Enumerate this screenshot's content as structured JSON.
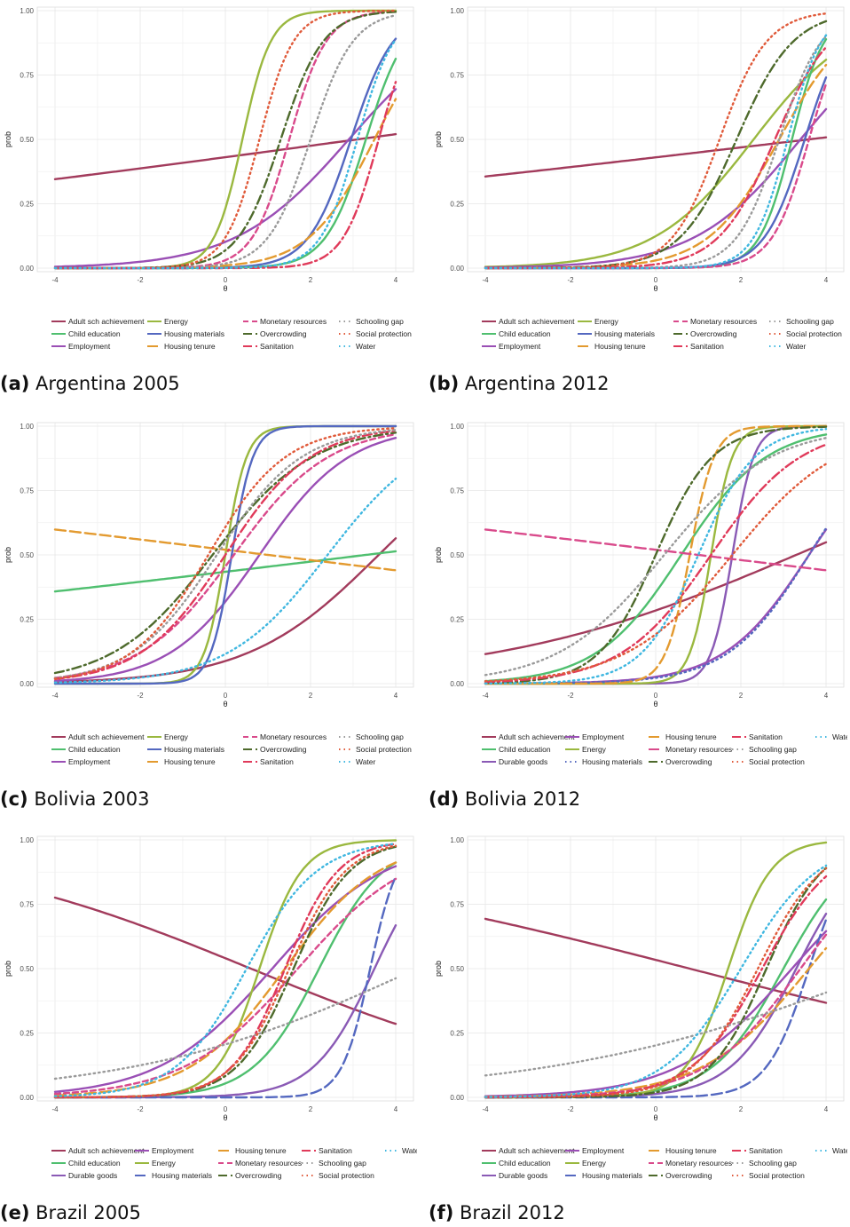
{
  "colors": {
    "Adult sch achievement": "#a23b5c",
    "Child education": "#4fbf6f",
    "Employment": "#9a4fb5",
    "Energy": "#9ab83f",
    "Housing materials": "#5468c0",
    "Housing tenure": "#e39a2f",
    "Monetary resources": "#d94a8b",
    "Overcrowding": "#4e6a2c",
    "Sanitation": "#e03a5a",
    "Schooling gap": "#9a9a9a",
    "Social protection": "#e05a3a",
    "Water": "#3fb7e0",
    "Durable goods": "#8a5ab5"
  },
  "axis": {
    "xlabel": "θ",
    "ylabel": "prob",
    "xticks": [
      "-4",
      "-2",
      "0",
      "2",
      "4"
    ],
    "yticks": [
      "0.00",
      "0.25",
      "0.50",
      "0.75",
      "1.00"
    ],
    "xlim": [
      -4,
      4
    ],
    "ylim": [
      0,
      1
    ]
  },
  "chart_data": [
    {
      "type": "line",
      "label": "(a)",
      "title": "Argentina 2005",
      "legend": [
        "Adult sch achievement",
        "Child education",
        "Employment",
        "Energy",
        "Housing materials",
        "Housing tenure",
        "Monetary resources",
        "Overcrowding",
        "Sanitation",
        "Schooling gap",
        "Social protection",
        "Water"
      ],
      "series": [
        {
          "name": "Adult sch achievement",
          "a": 0.09,
          "b": 3.1,
          "dash": "solid"
        },
        {
          "name": "Employment",
          "a": 0.75,
          "b": 2.9,
          "dash": "solid"
        },
        {
          "name": "Energy",
          "a": 3.0,
          "b": 0.4,
          "dash": "solid"
        },
        {
          "name": "Housing materials",
          "a": 2.0,
          "b": 2.95,
          "dash": "solid"
        },
        {
          "name": "Child education",
          "a": 2.1,
          "b": 3.3,
          "dash": "solid"
        },
        {
          "name": "Housing tenure",
          "a": 1.3,
          "b": 3.5,
          "dash": "longdash"
        },
        {
          "name": "Monetary resources",
          "a": 2.3,
          "b": 1.5,
          "dash": "dash"
        },
        {
          "name": "Overcrowding",
          "a": 2.0,
          "b": 1.3,
          "dash": "dashdot"
        },
        {
          "name": "Sanitation",
          "a": 2.4,
          "b": 3.6,
          "dash": "dashdot"
        },
        {
          "name": "Schooling gap",
          "a": 2.0,
          "b": 2.0,
          "dash": "dotted"
        },
        {
          "name": "Social protection",
          "a": 2.5,
          "b": 0.8,
          "dash": "dotted"
        },
        {
          "name": "Water",
          "a": 2.3,
          "b": 3.1,
          "dash": "dotted"
        }
      ]
    },
    {
      "type": "line",
      "label": "(b)",
      "title": "Argentina 2012",
      "legend": [
        "Adult sch achievement",
        "Child education",
        "Employment",
        "Energy",
        "Housing materials",
        "Housing tenure",
        "Monetary resources",
        "Overcrowding",
        "Sanitation",
        "Schooling gap",
        "Social protection",
        "Water"
      ],
      "series": [
        {
          "name": "Adult sch achievement",
          "a": 0.078,
          "b": 3.6,
          "dash": "solid"
        },
        {
          "name": "Energy",
          "a": 0.85,
          "b": 2.3,
          "dash": "solid"
        },
        {
          "name": "Employment",
          "a": 0.8,
          "b": 3.4,
          "dash": "solid"
        },
        {
          "name": "Child education",
          "a": 2.6,
          "b": 3.2,
          "dash": "solid"
        },
        {
          "name": "Housing materials",
          "a": 2.1,
          "b": 3.5,
          "dash": "solid"
        },
        {
          "name": "Housing tenure",
          "a": 1.2,
          "b": 2.9,
          "dash": "longdash"
        },
        {
          "name": "Monetary resources",
          "a": 2.3,
          "b": 3.6,
          "dash": "dash"
        },
        {
          "name": "Overcrowding",
          "a": 1.5,
          "b": 1.9,
          "dash": "dashdot"
        },
        {
          "name": "Sanitation",
          "a": 1.5,
          "b": 2.8,
          "dash": "dashdot"
        },
        {
          "name": "Schooling gap",
          "a": 2.0,
          "b": 2.9,
          "dash": "dotted"
        },
        {
          "name": "Social protection",
          "a": 1.8,
          "b": 1.5,
          "dash": "dotted"
        },
        {
          "name": "Water",
          "a": 2.5,
          "b": 3.1,
          "dash": "dotted"
        }
      ]
    },
    {
      "type": "line",
      "label": "(c)",
      "title": "Bolivia 2003",
      "legend": [
        "Adult sch achievement",
        "Child education",
        "Employment",
        "Energy",
        "Housing materials",
        "Housing tenure",
        "Monetary resources",
        "Overcrowding",
        "Sanitation",
        "Schooling gap",
        "Social protection",
        "Water"
      ],
      "series": [
        {
          "name": "Adult sch achievement",
          "a": 0.65,
          "b": 3.6,
          "dash": "solid"
        },
        {
          "name": "Child education",
          "a": 0.08,
          "b": 3.3,
          "dash": "solid"
        },
        {
          "name": "Employment",
          "a": 0.95,
          "b": 0.8,
          "dash": "solid"
        },
        {
          "name": "Energy",
          "a": 4.0,
          "b": 0.0,
          "dash": "solid"
        },
        {
          "name": "Housing materials",
          "a": 4.0,
          "b": 0.15,
          "dash": "solid"
        },
        {
          "name": "Housing tenure",
          "a": -0.08,
          "b": 1.0,
          "dash": "longdash"
        },
        {
          "name": "Monetary resources",
          "a": 0.9,
          "b": 0.2,
          "dash": "dash"
        },
        {
          "name": "Overcrowding",
          "a": 0.85,
          "b": -0.3,
          "dash": "dashdot"
        },
        {
          "name": "Sanitation",
          "a": 1.0,
          "b": 0.0,
          "dash": "dashdot"
        },
        {
          "name": "Schooling gap",
          "a": 1.0,
          "b": -0.2,
          "dash": "dotted"
        },
        {
          "name": "Social protection",
          "a": 1.1,
          "b": -0.4,
          "dash": "dotted"
        },
        {
          "name": "Water",
          "a": 0.85,
          "b": 2.4,
          "dash": "dotted"
        }
      ]
    },
    {
      "type": "line",
      "label": "(d)",
      "title": "Bolivia 2012",
      "legend": [
        "Adult sch achievement",
        "Child education",
        "Durable goods",
        "Employment",
        "Energy",
        "Housing materials",
        "Housing tenure",
        "Monetary resources",
        "Overcrowding",
        "Sanitation",
        "Schooling gap",
        "Social protection",
        "Water"
      ],
      "series": [
        {
          "name": "Adult sch achievement",
          "a": 0.28,
          "b": 3.3,
          "dash": "solid"
        },
        {
          "name": "Child education",
          "a": 1.0,
          "b": 0.6,
          "dash": "solid"
        },
        {
          "name": "Durable goods",
          "a": 4.0,
          "b": 1.8,
          "dash": "solid"
        },
        {
          "name": "Employment",
          "a": 1.0,
          "b": 3.6,
          "dash": "solid"
        },
        {
          "name": "Energy",
          "a": 4.0,
          "b": 1.3,
          "dash": "solid"
        },
        {
          "name": "Housing materials",
          "a": 1.05,
          "b": 3.6,
          "dash": "dotted"
        },
        {
          "name": "Housing tenure",
          "a": 3.5,
          "b": 0.8,
          "dash": "longdash"
        },
        {
          "name": "Monetary resources",
          "a": -0.08,
          "b": 1.0,
          "dash": "longdash"
        },
        {
          "name": "Overcrowding",
          "a": 1.5,
          "b": 0.0,
          "dash": "dashdot"
        },
        {
          "name": "Sanitation",
          "a": 0.95,
          "b": 1.3,
          "dash": "dashdot"
        },
        {
          "name": "Schooling gap",
          "a": 0.8,
          "b": 0.2,
          "dash": "dotted"
        },
        {
          "name": "Social protection",
          "a": 0.8,
          "b": 1.8,
          "dash": "dotted"
        },
        {
          "name": "Water",
          "a": 1.5,
          "b": 1.0,
          "dash": "dotted"
        }
      ]
    },
    {
      "type": "line",
      "label": "(e)",
      "title": "Brazil 2005",
      "legend": [
        "Adult sch achievement",
        "Child education",
        "Durable goods",
        "Employment",
        "Energy",
        "Housing materials",
        "Housing tenure",
        "Monetary resources",
        "Overcrowding",
        "Sanitation",
        "Schooling gap",
        "Social protection",
        "Water"
      ],
      "series": [
        {
          "name": "Adult sch achievement",
          "a": -0.27,
          "b": 0.6,
          "dash": "solid"
        },
        {
          "name": "Child education",
          "a": 1.3,
          "b": 2.2,
          "dash": "solid"
        },
        {
          "name": "Durable goods",
          "a": 1.4,
          "b": 3.5,
          "dash": "solid"
        },
        {
          "name": "Employment",
          "a": 0.75,
          "b": 1.1,
          "dash": "solid"
        },
        {
          "name": "Energy",
          "a": 2.0,
          "b": 0.8,
          "dash": "solid"
        },
        {
          "name": "Housing materials",
          "a": 3.0,
          "b": 3.4,
          "dash": "longdash"
        },
        {
          "name": "Housing tenure",
          "a": 0.9,
          "b": 1.4,
          "dash": "longdash"
        },
        {
          "name": "Monetary resources",
          "a": 0.75,
          "b": 1.7,
          "dash": "dash"
        },
        {
          "name": "Overcrowding",
          "a": 1.5,
          "b": 1.6,
          "dash": "dashdot"
        },
        {
          "name": "Sanitation",
          "a": 1.6,
          "b": 1.4,
          "dash": "dashdot"
        },
        {
          "name": "Schooling gap",
          "a": 0.3,
          "b": 4.5,
          "dash": "dotted"
        },
        {
          "name": "Social protection",
          "a": 1.5,
          "b": 1.5,
          "dash": "dotted"
        },
        {
          "name": "Water",
          "a": 1.2,
          "b": 0.5,
          "dash": "dotted"
        }
      ]
    },
    {
      "type": "line",
      "label": "(f)",
      "title": "Brazil 2012",
      "legend": [
        "Adult sch achievement",
        "Child education",
        "Durable goods",
        "Employment",
        "Energy",
        "Housing materials",
        "Housing tenure",
        "Monetary resources",
        "Overcrowding",
        "Sanitation",
        "Schooling gap",
        "Social protection",
        "Water"
      ],
      "series": [
        {
          "name": "Adult sch achievement",
          "a": -0.17,
          "b": 0.8,
          "dash": "solid"
        },
        {
          "name": "Child education",
          "a": 1.2,
          "b": 3.0,
          "dash": "solid"
        },
        {
          "name": "Durable goods",
          "a": 1.3,
          "b": 3.3,
          "dash": "solid"
        },
        {
          "name": "Employment",
          "a": 0.75,
          "b": 3.2,
          "dash": "solid"
        },
        {
          "name": "Energy",
          "a": 2.0,
          "b": 1.7,
          "dash": "solid"
        },
        {
          "name": "Housing materials",
          "a": 2.0,
          "b": 3.6,
          "dash": "longdash"
        },
        {
          "name": "Housing tenure",
          "a": 0.8,
          "b": 3.6,
          "dash": "longdash"
        },
        {
          "name": "Monetary resources",
          "a": 0.9,
          "b": 3.4,
          "dash": "dash"
        },
        {
          "name": "Overcrowding",
          "a": 1.5,
          "b": 2.6,
          "dash": "dashdot"
        },
        {
          "name": "Sanitation",
          "a": 1.2,
          "b": 2.5,
          "dash": "dashdot"
        },
        {
          "name": "Schooling gap",
          "a": 0.25,
          "b": 5.5,
          "dash": "dotted"
        },
        {
          "name": "Social protection",
          "a": 1.3,
          "b": 2.4,
          "dash": "dotted"
        },
        {
          "name": "Water",
          "a": 1.1,
          "b": 2.0,
          "dash": "dotted"
        }
      ]
    }
  ]
}
